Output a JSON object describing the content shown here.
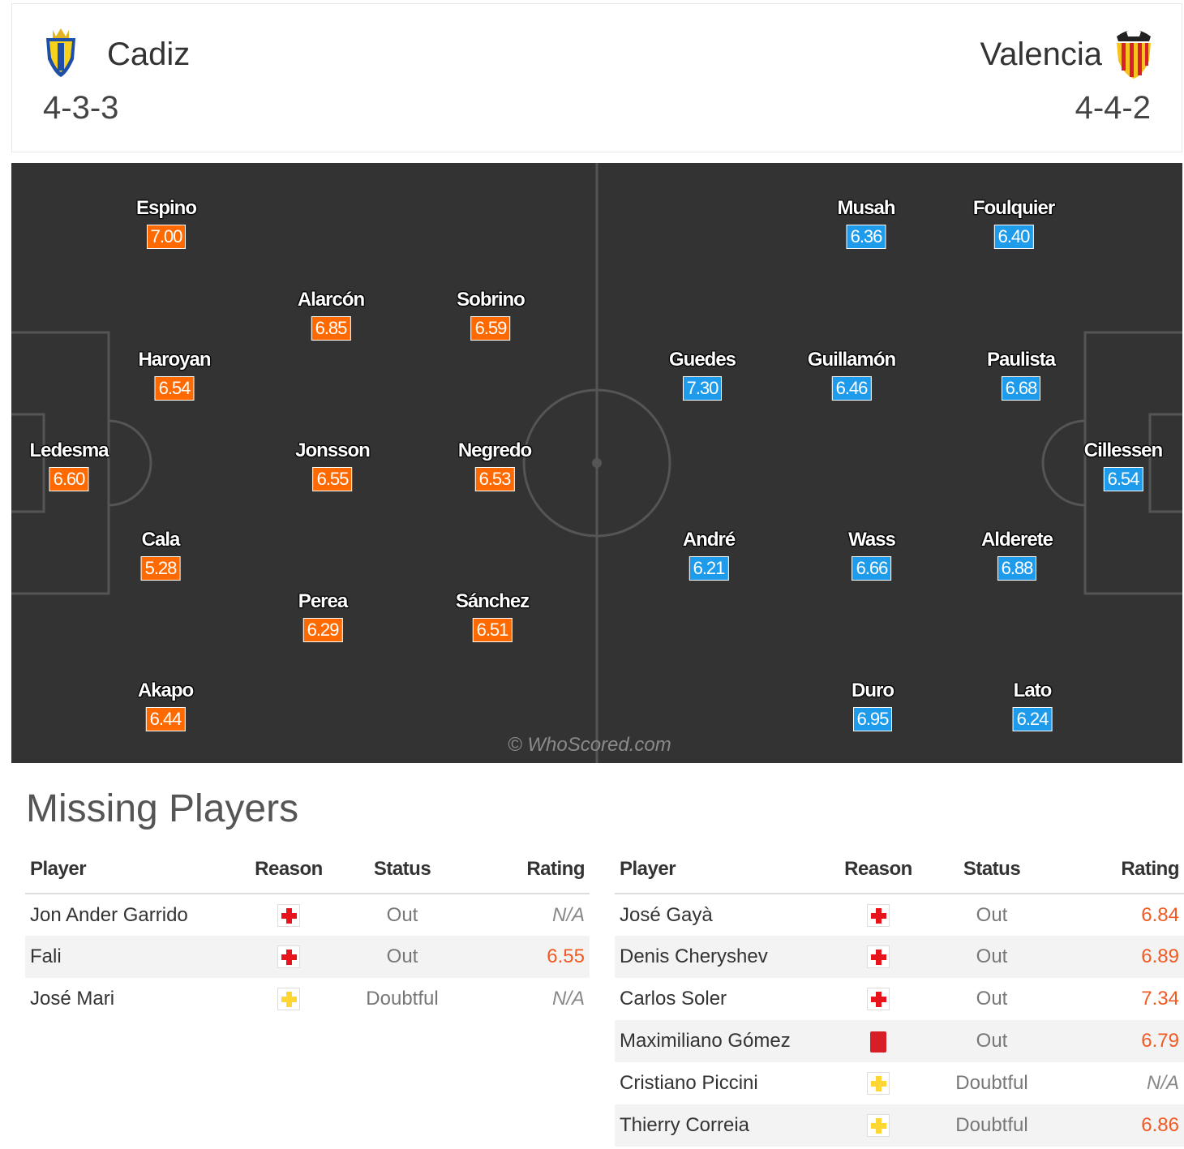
{
  "header": {
    "home": {
      "name": "Cadiz",
      "formation": "4-3-3",
      "crest_icon": "cadiz-crest-icon"
    },
    "away": {
      "name": "Valencia",
      "formation": "4-4-2",
      "crest_icon": "valencia-crest-icon"
    }
  },
  "pitch": {
    "home_color": "#ff6a00",
    "away_color": "#1f9bec",
    "watermark": "© WhoScored.com",
    "home_players": [
      {
        "name": "Espino",
        "rating": "7.00"
      },
      {
        "name": "Alarcón",
        "rating": "6.85"
      },
      {
        "name": "Sobrino",
        "rating": "6.59"
      },
      {
        "name": "Haroyan",
        "rating": "6.54"
      },
      {
        "name": "Ledesma",
        "rating": "6.60"
      },
      {
        "name": "Jonsson",
        "rating": "6.55"
      },
      {
        "name": "Negredo",
        "rating": "6.53"
      },
      {
        "name": "Cala",
        "rating": "5.28"
      },
      {
        "name": "Perea",
        "rating": "6.29"
      },
      {
        "name": "Sánchez",
        "rating": "6.51"
      },
      {
        "name": "Akapo",
        "rating": "6.44"
      }
    ],
    "away_players": [
      {
        "name": "Musah",
        "rating": "6.36"
      },
      {
        "name": "Foulquier",
        "rating": "6.40"
      },
      {
        "name": "Guedes",
        "rating": "7.30"
      },
      {
        "name": "Guillamón",
        "rating": "6.46"
      },
      {
        "name": "Paulista",
        "rating": "6.68"
      },
      {
        "name": "Cillessen",
        "rating": "6.54"
      },
      {
        "name": "André",
        "rating": "6.21"
      },
      {
        "name": "Wass",
        "rating": "6.66"
      },
      {
        "name": "Alderete",
        "rating": "6.88"
      },
      {
        "name": "Duro",
        "rating": "6.95"
      },
      {
        "name": "Lato",
        "rating": "6.24"
      }
    ]
  },
  "missing": {
    "title": "Missing Players",
    "columns": {
      "player": "Player",
      "reason": "Reason",
      "status": "Status",
      "rating": "Rating"
    },
    "home": [
      {
        "player": "Jon Ander Garrido",
        "reason": "injury",
        "status": "Out",
        "rating": "N/A"
      },
      {
        "player": "Fali",
        "reason": "injury",
        "status": "Out",
        "rating": "6.55"
      },
      {
        "player": "José Mari",
        "reason": "doubtful",
        "status": "Doubtful",
        "rating": "N/A"
      }
    ],
    "away": [
      {
        "player": "José Gayà",
        "reason": "injury",
        "status": "Out",
        "rating": "6.84"
      },
      {
        "player": "Denis Cheryshev",
        "reason": "injury",
        "status": "Out",
        "rating": "6.89"
      },
      {
        "player": "Carlos Soler",
        "reason": "injury",
        "status": "Out",
        "rating": "7.34"
      },
      {
        "player": "Maximiliano Gómez",
        "reason": "red-card",
        "status": "Out",
        "rating": "6.79"
      },
      {
        "player": "Cristiano Piccini",
        "reason": "doubtful",
        "status": "Doubtful",
        "rating": "N/A"
      },
      {
        "player": "Thierry Correia",
        "reason": "doubtful",
        "status": "Doubtful",
        "rating": "6.86"
      }
    ]
  }
}
